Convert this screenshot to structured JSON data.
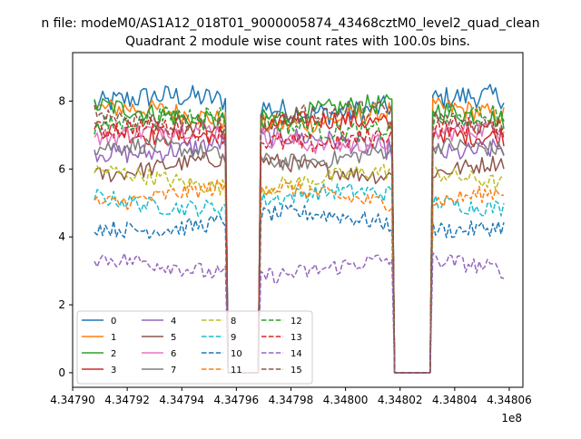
{
  "chart_data": {
    "type": "line",
    "suptitle": "n file: modeM0/AS1A12_018T01_9000005874_43468cztM0_level2_quad_clean",
    "title": "Quadrant 2 module wise count rates with 100.0s bins.",
    "xlabel": "",
    "ylabel": "",
    "x_offset_label": "1e8",
    "xlim": [
      434790000,
      434806500
    ],
    "ylim": [
      -0.43,
      9.43
    ],
    "x_ticks": [
      434790000,
      434792000,
      434794000,
      434796000,
      434798000,
      434800000,
      434802000,
      434804000,
      434806000
    ],
    "x_tick_labels": [
      "4.34790",
      "4.34792",
      "4.34794",
      "4.34796",
      "4.34798",
      "4.34800",
      "4.34802",
      "4.34804",
      "4.34806"
    ],
    "y_ticks": [
      0,
      2,
      4,
      6,
      8
    ],
    "y_tick_labels": [
      "0",
      "2",
      "4",
      "6",
      "8"
    ],
    "legend_position": "lower-left",
    "legend_columns": 4,
    "x_range": [
      434790800,
      434805800
    ],
    "bin_seconds": 100,
    "gaps": [
      [
        434795700,
        434796800
      ],
      [
        434801800,
        434803100
      ]
    ],
    "series": [
      {
        "name": "0",
        "color": "#1f77b4",
        "dash": "solid",
        "level": 7.9,
        "noise": 0.35
      },
      {
        "name": "1",
        "color": "#ff7f0e",
        "dash": "solid",
        "level": 7.55,
        "noise": 0.3
      },
      {
        "name": "2",
        "color": "#2ca02c",
        "dash": "solid",
        "level": 7.65,
        "noise": 0.3
      },
      {
        "name": "3",
        "color": "#d62728",
        "dash": "solid",
        "level": 7.2,
        "noise": 0.3
      },
      {
        "name": "4",
        "color": "#9467bd",
        "dash": "solid",
        "level": 6.7,
        "noise": 0.3
      },
      {
        "name": "5",
        "color": "#8c564b",
        "dash": "solid",
        "level": 6.05,
        "noise": 0.25
      },
      {
        "name": "6",
        "color": "#e377c2",
        "dash": "solid",
        "level": 6.95,
        "noise": 0.3
      },
      {
        "name": "7",
        "color": "#7f7f7f",
        "dash": "solid",
        "level": 6.45,
        "noise": 0.25
      },
      {
        "name": "8",
        "color": "#bcbd22",
        "dash": "dashed",
        "level": 5.7,
        "noise": 0.25
      },
      {
        "name": "9",
        "color": "#17becf",
        "dash": "dashed",
        "level": 5.1,
        "noise": 0.25
      },
      {
        "name": "10",
        "color": "#1f77b4",
        "dash": "dashed",
        "level": 4.45,
        "noise": 0.25
      },
      {
        "name": "11",
        "color": "#ff7f0e",
        "dash": "dashed",
        "level": 5.25,
        "noise": 0.25
      },
      {
        "name": "12",
        "color": "#2ca02c",
        "dash": "dashed",
        "level": 7.35,
        "noise": 0.3
      },
      {
        "name": "13",
        "color": "#d62728",
        "dash": "dashed",
        "level": 7.0,
        "noise": 0.3
      },
      {
        "name": "14",
        "color": "#9467bd",
        "dash": "dashed",
        "level": 3.1,
        "noise": 0.25
      },
      {
        "name": "15",
        "color": "#8c564b",
        "dash": "dashed",
        "level": 7.5,
        "noise": 0.3
      }
    ]
  }
}
